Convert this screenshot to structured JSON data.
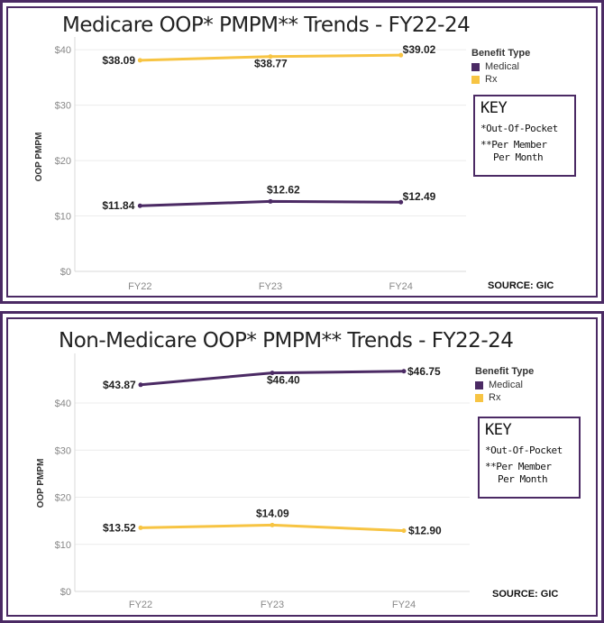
{
  "colors": {
    "medical": "#4b2a64",
    "rx": "#f7c443",
    "frame": "#4b2a64"
  },
  "chart_data": [
    {
      "type": "line",
      "title": "Medicare OOP* PMPM** Trends - FY22-24",
      "xlabel": "",
      "ylabel": "OOP PMPM",
      "categories": [
        "FY22",
        "FY23",
        "FY24"
      ],
      "ylim": [
        0,
        41
      ],
      "yticks": [
        0,
        10,
        20,
        30,
        40
      ],
      "ytick_labels": [
        "$0",
        "$10",
        "$20",
        "$30",
        "$40"
      ],
      "grid": true,
      "legend": {
        "title": "Benefit Type",
        "placement": "right"
      },
      "series": [
        {
          "name": "Medical",
          "values": [
            11.84,
            12.62,
            12.49
          ],
          "labels": [
            "$11.84",
            "$12.62",
            "$12.49"
          ]
        },
        {
          "name": "Rx",
          "values": [
            38.09,
            38.77,
            39.02
          ],
          "labels": [
            "$38.09",
            "$38.77",
            "$39.02"
          ]
        }
      ]
    },
    {
      "type": "line",
      "title": "Non-Medicare OOP* PMPM** Trends - FY22-24",
      "xlabel": "",
      "ylabel": "OOP PMPM",
      "categories": [
        "FY22",
        "FY23",
        "FY24"
      ],
      "ylim": [
        0,
        49
      ],
      "yticks": [
        0,
        10,
        20,
        30,
        40
      ],
      "ytick_labels": [
        "$0",
        "$10",
        "$20",
        "$30",
        "$40"
      ],
      "grid": true,
      "legend": {
        "title": "Benefit Type",
        "placement": "right"
      },
      "series": [
        {
          "name": "Medical",
          "values": [
            43.87,
            46.4,
            46.75
          ],
          "labels": [
            "$43.87",
            "$46.40",
            "$46.75"
          ]
        },
        {
          "name": "Rx",
          "values": [
            13.52,
            14.09,
            12.9
          ],
          "labels": [
            "$13.52",
            "$14.09",
            "$12.90"
          ]
        }
      ]
    }
  ],
  "key": {
    "title": "KEY",
    "line1": "*Out-Of-Pocket",
    "line2": "**Per Member",
    "line3": "Per Month"
  },
  "source": "SOURCE: GIC"
}
